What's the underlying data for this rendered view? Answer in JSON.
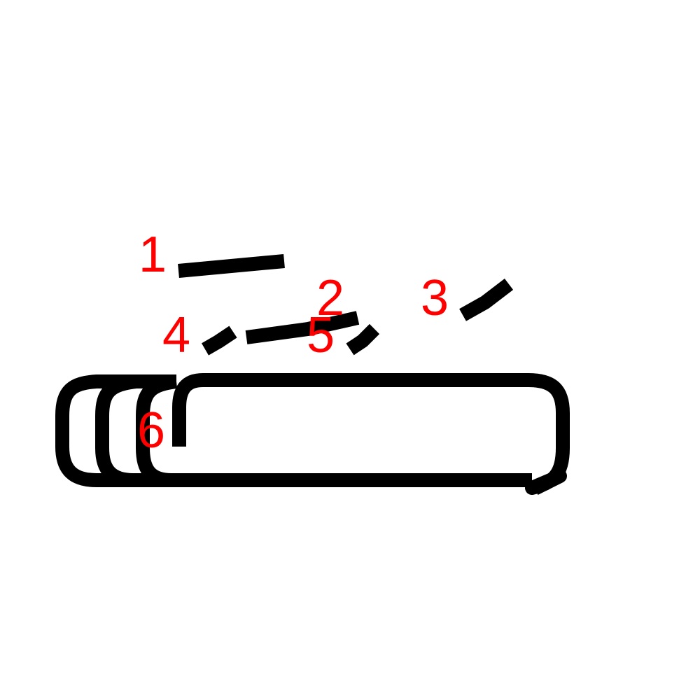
{
  "colors": {
    "stroke": "#000000",
    "label": "#ff0000"
  },
  "labels": [
    "1",
    "2",
    "3",
    "4",
    "5",
    "6"
  ]
}
